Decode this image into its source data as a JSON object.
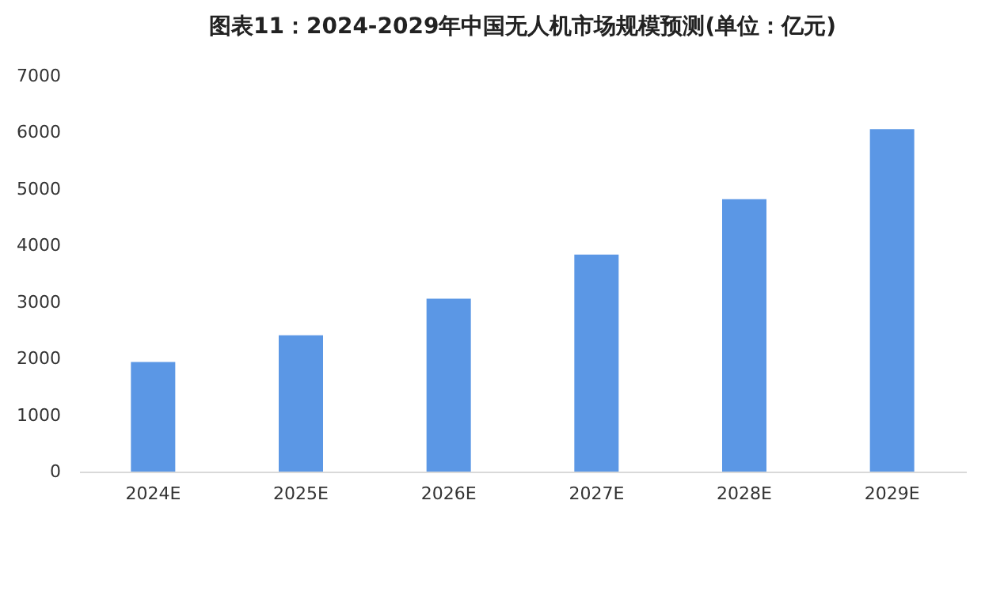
{
  "chart_data": {
    "type": "bar",
    "title": "图表11：2024-2029年中国无人机市场规模预测(单位：亿元)",
    "categories": [
      "2024E",
      "2025E",
      "2026E",
      "2027E",
      "2028E",
      "2029E"
    ],
    "values": [
      1940,
      2410,
      3060,
      3840,
      4820,
      6060
    ],
    "color": "#5b97e5",
    "ylim": [
      0,
      7000
    ],
    "yticks": [
      0,
      1000,
      2000,
      3000,
      4000,
      5000,
      6000,
      7000
    ],
    "grid": false
  }
}
